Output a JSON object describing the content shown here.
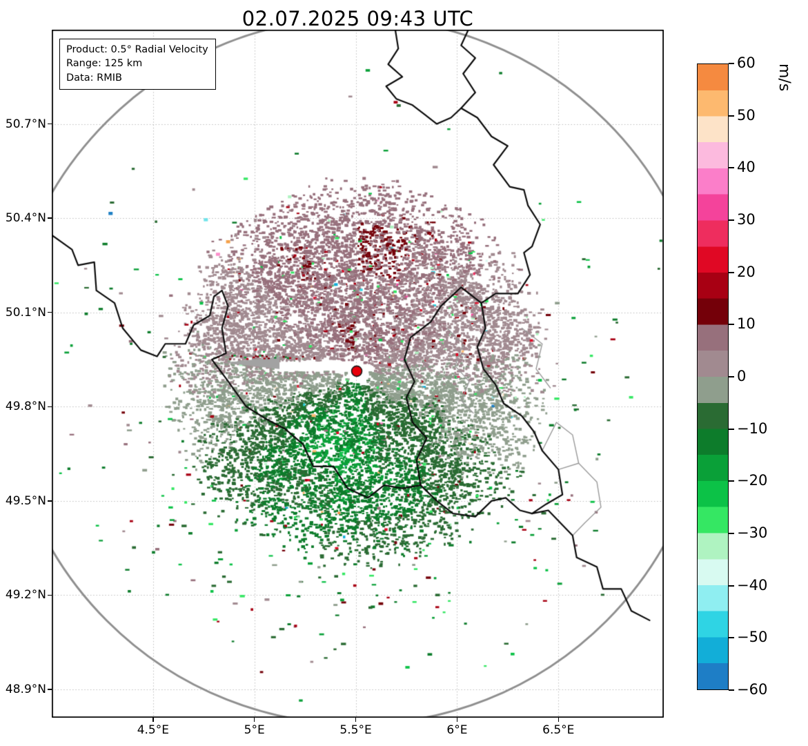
{
  "title": "02.07.2025 09:43 UTC",
  "info_box": {
    "lines": [
      "Product: 0.5° Radial Velocity",
      "Range: 125 km",
      "Data: RMIB"
    ]
  },
  "chart_data": {
    "type": "heatmap",
    "title": "02.07.2025 09:43 UTC",
    "description": "Doppler weather radar PPI map of 0.5° elevation radial velocity over the Belgium / Luxembourg / France / Germany border region. Receding flow (positive, mauve/red, ~0 to +10 m/s with dark-red speckles up to +20) fills the half north of the radar; approaching flow (negative, gray-green to dark green, ~0 to -20 m/s) fills the half south of the radar, i.e. roughly southerly winds. Echoes extend to about 65 km from the radar with scattered clutter beyond; a 125 km gray range ring surrounds the site and a red dot marks the radar.",
    "extent": {
      "lon_min": 4.0,
      "lon_max": 7.02,
      "lat_min": 48.81,
      "lat_max": 51.0
    },
    "grid": "dotted",
    "x_ticks": [
      {
        "v": 4.5,
        "label": "4.5°E"
      },
      {
        "v": 5.0,
        "label": "5°E"
      },
      {
        "v": 5.5,
        "label": "5.5°E"
      },
      {
        "v": 6.0,
        "label": "6°E"
      },
      {
        "v": 6.5,
        "label": "6.5°E"
      }
    ],
    "y_ticks": [
      {
        "v": 50.7,
        "label": "50.7°N"
      },
      {
        "v": 50.4,
        "label": "50.4°N"
      },
      {
        "v": 50.1,
        "label": "50.1°N"
      },
      {
        "v": 49.8,
        "label": "49.8°N"
      },
      {
        "v": 49.5,
        "label": "49.5°N"
      },
      {
        "v": 49.2,
        "label": "49.2°N"
      },
      {
        "v": 48.9,
        "label": "48.9°N"
      }
    ],
    "radar": {
      "lon": 5.505,
      "lat": 49.913,
      "range_km": 125,
      "marker_color": "#e8000b",
      "ring_color": "#8f8f8f"
    },
    "wind_field": {
      "seed": 20250702,
      "n_points": 30000,
      "max_range_km": 66,
      "base_speed": 5.5,
      "green_patch_azimuth": 205,
      "green_patch_boost": 11,
      "clutter_points": 1400,
      "positive_side": "north",
      "negative_side": "south"
    },
    "colorbar": {
      "label": "m/s",
      "min": -60,
      "max": 60,
      "ticks": [
        60,
        50,
        40,
        30,
        20,
        10,
        0,
        -10,
        -20,
        -30,
        -40,
        -50,
        -60
      ],
      "segments": [
        {
          "from": -60,
          "to": -55,
          "color": "#1e7ec6"
        },
        {
          "from": -55,
          "to": -50,
          "color": "#12aed8"
        },
        {
          "from": -50,
          "to": -45,
          "color": "#2fd4e4"
        },
        {
          "from": -45,
          "to": -40,
          "color": "#8feef1"
        },
        {
          "from": -40,
          "to": -35,
          "color": "#d8faf1"
        },
        {
          "from": -35,
          "to": -30,
          "color": "#aff3c1"
        },
        {
          "from": -30,
          "to": -25,
          "color": "#35e763"
        },
        {
          "from": -25,
          "to": -20,
          "color": "#0cc247"
        },
        {
          "from": -20,
          "to": -15,
          "color": "#0aa038"
        },
        {
          "from": -15,
          "to": -10,
          "color": "#0d7c2b"
        },
        {
          "from": -10,
          "to": -5,
          "color": "#2a6b33"
        },
        {
          "from": -5,
          "to": 0,
          "color": "#8f9e8d"
        },
        {
          "from": 0,
          "to": 5,
          "color": "#a18a90"
        },
        {
          "from": 5,
          "to": 10,
          "color": "#97707c"
        },
        {
          "from": 10,
          "to": 15,
          "color": "#740009"
        },
        {
          "from": 15,
          "to": 20,
          "color": "#a80013"
        },
        {
          "from": 20,
          "to": 25,
          "color": "#e00824"
        },
        {
          "from": 25,
          "to": 30,
          "color": "#ee2d5e"
        },
        {
          "from": 30,
          "to": 35,
          "color": "#f4439b"
        },
        {
          "from": 35,
          "to": 40,
          "color": "#fb7ec9"
        },
        {
          "from": 40,
          "to": 45,
          "color": "#fcbade"
        },
        {
          "from": 45,
          "to": 50,
          "color": "#fde3c8"
        },
        {
          "from": 50,
          "to": 55,
          "color": "#fdb96f"
        },
        {
          "from": 55,
          "to": 60,
          "color": "#f58a40"
        }
      ]
    },
    "borders": {
      "black": [
        [
          [
            5.69,
            51.02
          ],
          [
            5.71,
            50.94
          ],
          [
            5.66,
            50.89
          ],
          [
            5.73,
            50.85
          ],
          [
            5.65,
            50.82
          ],
          [
            5.7,
            50.78
          ],
          [
            5.78,
            50.76
          ],
          [
            5.84,
            50.73
          ],
          [
            5.9,
            50.7
          ],
          [
            5.97,
            50.72
          ],
          [
            6.02,
            50.75
          ]
        ],
        [
          [
            6.07,
            51.02
          ],
          [
            6.02,
            50.95
          ],
          [
            6.09,
            50.91
          ],
          [
            6.03,
            50.86
          ],
          [
            6.09,
            50.8
          ],
          [
            6.02,
            50.75
          ]
        ],
        [
          [
            6.02,
            50.75
          ],
          [
            6.1,
            50.72
          ],
          [
            6.17,
            50.66
          ],
          [
            6.25,
            50.63
          ],
          [
            6.18,
            50.57
          ],
          [
            6.26,
            50.5
          ],
          [
            6.33,
            50.49
          ],
          [
            6.35,
            50.44
          ],
          [
            6.41,
            50.38
          ],
          [
            6.37,
            50.31
          ],
          [
            6.33,
            50.29
          ],
          [
            6.36,
            50.22
          ],
          [
            6.3,
            50.16
          ],
          [
            6.19,
            50.16
          ],
          [
            6.12,
            50.13
          ]
        ],
        [
          [
            6.12,
            50.13
          ],
          [
            6.02,
            50.18
          ],
          [
            5.92,
            50.12
          ],
          [
            5.87,
            50.07
          ],
          [
            5.77,
            50.02
          ],
          [
            5.74,
            49.95
          ],
          [
            5.79,
            49.88
          ],
          [
            5.75,
            49.83
          ],
          [
            5.78,
            49.75
          ],
          [
            5.85,
            49.7
          ],
          [
            5.8,
            49.63
          ],
          [
            5.82,
            49.55
          ]
        ],
        [
          [
            6.12,
            50.13
          ],
          [
            6.14,
            50.05
          ],
          [
            6.1,
            49.99
          ],
          [
            6.13,
            49.92
          ],
          [
            6.19,
            49.87
          ],
          [
            6.23,
            49.81
          ],
          [
            6.32,
            49.77
          ],
          [
            6.38,
            49.72
          ],
          [
            6.42,
            49.66
          ],
          [
            6.5,
            49.6
          ],
          [
            6.52,
            49.52
          ],
          [
            6.44,
            49.49
          ],
          [
            6.37,
            49.46
          ]
        ],
        [
          [
            3.97,
            50.36
          ],
          [
            4.1,
            50.3
          ],
          [
            4.13,
            50.25
          ],
          [
            4.21,
            50.26
          ],
          [
            4.22,
            50.17
          ],
          [
            4.31,
            50.13
          ],
          [
            4.35,
            50.05
          ],
          [
            4.44,
            49.98
          ],
          [
            4.52,
            49.96
          ],
          [
            4.56,
            50.0
          ],
          [
            4.66,
            50.0
          ],
          [
            4.7,
            50.06
          ],
          [
            4.78,
            50.09
          ],
          [
            4.8,
            50.15
          ],
          [
            4.84,
            50.17
          ],
          [
            4.87,
            50.12
          ],
          [
            4.84,
            50.05
          ],
          [
            4.86,
            49.97
          ],
          [
            4.79,
            49.95
          ],
          [
            4.86,
            49.89
          ],
          [
            4.96,
            49.8
          ],
          [
            5.06,
            49.76
          ],
          [
            5.15,
            49.73
          ],
          [
            5.24,
            49.68
          ],
          [
            5.29,
            49.61
          ],
          [
            5.39,
            49.61
          ],
          [
            5.46,
            49.54
          ],
          [
            5.56,
            49.51
          ],
          [
            5.64,
            49.55
          ],
          [
            5.73,
            49.54
          ],
          [
            5.82,
            49.55
          ]
        ],
        [
          [
            5.82,
            49.55
          ],
          [
            5.9,
            49.5
          ],
          [
            5.98,
            49.46
          ],
          [
            6.09,
            49.45
          ],
          [
            6.17,
            49.5
          ],
          [
            6.24,
            49.51
          ],
          [
            6.31,
            49.47
          ],
          [
            6.37,
            49.46
          ],
          [
            6.45,
            49.47
          ],
          [
            6.51,
            49.43
          ],
          [
            6.57,
            49.39
          ],
          [
            6.59,
            49.32
          ],
          [
            6.69,
            49.29
          ],
          [
            6.72,
            49.22
          ],
          [
            6.81,
            49.22
          ],
          [
            6.86,
            49.15
          ],
          [
            6.95,
            49.12
          ]
        ]
      ],
      "gray": [
        [
          [
            6.5,
            49.6
          ],
          [
            6.6,
            49.62
          ],
          [
            6.69,
            49.56
          ],
          [
            6.71,
            49.48
          ],
          [
            6.63,
            49.43
          ],
          [
            6.57,
            49.39
          ]
        ],
        [
          [
            6.6,
            49.62
          ],
          [
            6.57,
            49.71
          ],
          [
            6.49,
            49.75
          ],
          [
            6.42,
            49.66
          ]
        ],
        [
          [
            5.95,
            50.05
          ],
          [
            6.03,
            50.0
          ],
          [
            5.99,
            49.93
          ],
          [
            6.06,
            49.88
          ],
          [
            6.02,
            49.82
          ],
          [
            6.08,
            49.78
          ]
        ],
        [
          [
            6.32,
            50.05
          ],
          [
            6.42,
            50.0
          ],
          [
            6.39,
            49.92
          ],
          [
            6.46,
            49.86
          ]
        ]
      ]
    },
    "noise_points": [
      {
        "lon": 4.28,
        "lat": 50.42,
        "color": "#1d7fc4"
      },
      {
        "lon": 4.75,
        "lat": 50.4,
        "color": "#6fe3ea"
      },
      {
        "lon": 4.86,
        "lat": 50.33,
        "color": "#f4a14b"
      },
      {
        "lon": 4.81,
        "lat": 50.29,
        "color": "#fb8ecb"
      }
    ]
  }
}
